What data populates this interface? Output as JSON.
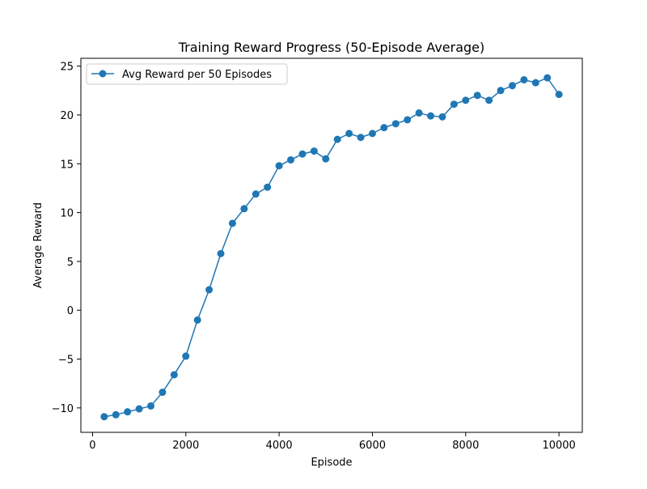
{
  "chart_data": {
    "type": "line",
    "title": "Training Reward Progress (50-Episode Average)",
    "xlabel": "Episode",
    "ylabel": "Average Reward",
    "xlim": [
      -250,
      10500
    ],
    "ylim": [
      -12.5,
      25.8
    ],
    "xticks": [
      0,
      2000,
      4000,
      6000,
      8000,
      10000
    ],
    "yticks": [
      -10,
      -5,
      0,
      5,
      10,
      15,
      20,
      25
    ],
    "xtick_labels": [
      "0",
      "2000",
      "4000",
      "6000",
      "8000",
      "10000"
    ],
    "ytick_labels": [
      "−10",
      "−5",
      "0",
      "5",
      "10",
      "15",
      "20",
      "25"
    ],
    "grid": false,
    "legend_position": "top-left",
    "series": [
      {
        "name": "Avg Reward per 50 Episodes",
        "color": "#1f77b4",
        "marker": "circle",
        "x": [
          250,
          500,
          750,
          1000,
          1250,
          1500,
          1750,
          2000,
          2250,
          2500,
          2750,
          3000,
          3250,
          3500,
          3750,
          4000,
          4250,
          4500,
          4750,
          5000,
          5250,
          5500,
          5750,
          6000,
          6250,
          6500,
          6750,
          7000,
          7250,
          7500,
          7750,
          8000,
          8250,
          8500,
          8750,
          9000,
          9250,
          9500,
          9750,
          10000
        ],
        "y": [
          -10.9,
          -10.7,
          -10.4,
          -10.1,
          -9.8,
          -8.4,
          -6.6,
          -4.7,
          -1.0,
          2.1,
          5.8,
          8.9,
          10.4,
          11.9,
          12.6,
          14.8,
          15.4,
          16.0,
          16.3,
          15.5,
          17.5,
          18.1,
          17.7,
          18.1,
          18.7,
          19.1,
          19.5,
          20.2,
          19.9,
          19.8,
          21.1,
          21.5,
          22.0,
          21.5,
          22.5,
          23.0,
          23.6,
          23.3,
          23.8,
          22.1
        ]
      }
    ]
  }
}
